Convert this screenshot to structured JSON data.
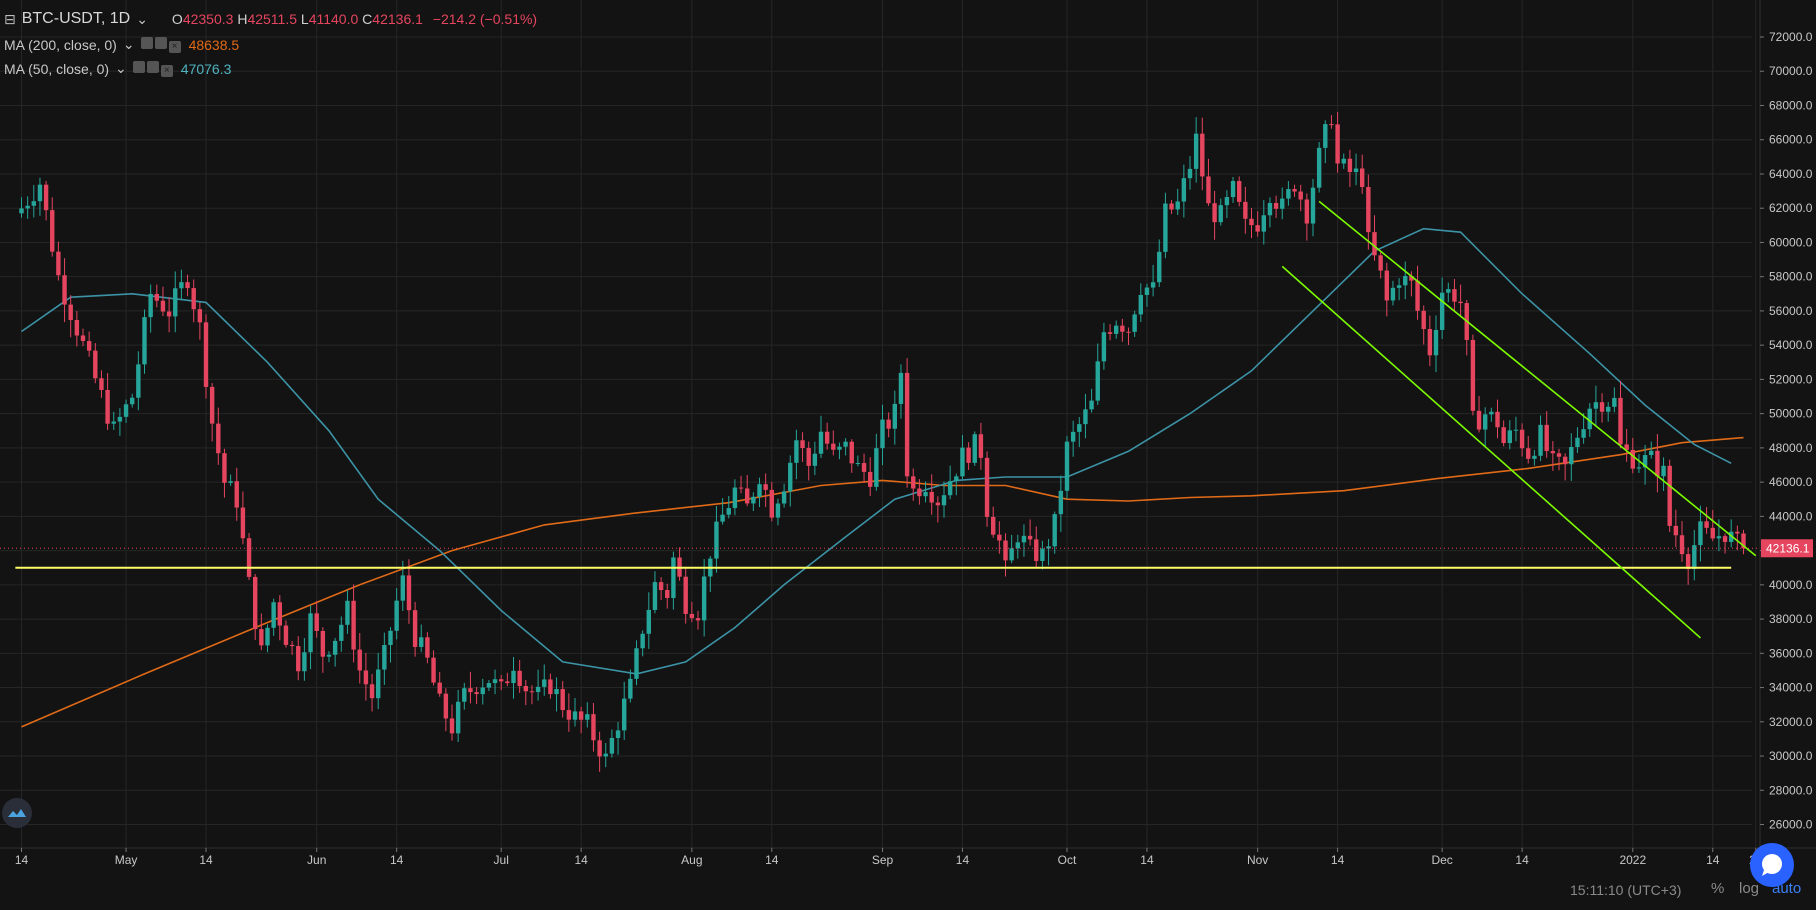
{
  "legend": {
    "symbol": "BTC-USDT, 1D",
    "open_label": "O",
    "open": "42350.3",
    "high_label": "H",
    "high": "42511.5",
    "low_label": "L",
    "low": "41140.0",
    "close_label": "C",
    "close": "42136.1",
    "change": "−214.2 (−0.51%)",
    "ma200_label": "MA (200, close, 0)",
    "ma200_value": "48638.5",
    "ma50_label": "MA (50, close, 0)",
    "ma50_value": "47076.3"
  },
  "status_bar": {
    "time": "15:11:10 (UTC+3)",
    "percent": "%",
    "log": "log",
    "auto": "auto"
  },
  "colors": {
    "background": "#131313",
    "up": "#26a69a",
    "down": "#e5455f",
    "ma200": "#e06a18",
    "ma50": "#3c93a6",
    "support": "#ffff66",
    "channel": "#7cfc00"
  },
  "chart_data": {
    "type": "candlestick",
    "title": "BTC-USDT, 1D",
    "y_ticks": [
      26000,
      28000,
      30000,
      32000,
      34000,
      36000,
      38000,
      40000,
      42000,
      44000,
      46000,
      48000,
      50000,
      52000,
      54000,
      56000,
      58000,
      60000,
      62000,
      64000,
      66000,
      68000,
      70000,
      72000
    ],
    "x_ticks": [
      {
        "label": "14",
        "day": 0
      },
      {
        "label": "May",
        "day": 17
      },
      {
        "label": "14",
        "day": 30
      },
      {
        "label": "Jun",
        "day": 48
      },
      {
        "label": "14",
        "day": 61
      },
      {
        "label": "Jul",
        "day": 78
      },
      {
        "label": "14",
        "day": 91
      },
      {
        "label": "Aug",
        "day": 109
      },
      {
        "label": "14",
        "day": 122
      },
      {
        "label": "Sep",
        "day": 140
      },
      {
        "label": "14",
        "day": 153
      },
      {
        "label": "Oct",
        "day": 170
      },
      {
        "label": "14",
        "day": 183
      },
      {
        "label": "Nov",
        "day": 201
      },
      {
        "label": "14",
        "day": 214
      },
      {
        "label": "Dec",
        "day": 231
      },
      {
        "label": "14",
        "day": 244
      },
      {
        "label": "2022",
        "day": 262
      },
      {
        "label": "14",
        "day": 275
      },
      {
        "label": "21",
        "day": 282
      }
    ],
    "last_price": 42136.1,
    "last_price_label": "42136.1",
    "close_keypoints": [
      [
        0,
        62000
      ],
      [
        3,
        63500
      ],
      [
        6,
        58000
      ],
      [
        9,
        55000
      ],
      [
        12,
        52000
      ],
      [
        15,
        49000
      ],
      [
        18,
        51000
      ],
      [
        21,
        57000
      ],
      [
        24,
        56000
      ],
      [
        27,
        58000
      ],
      [
        29,
        55000
      ],
      [
        31,
        49500
      ],
      [
        33,
        46000
      ],
      [
        35,
        45000
      ],
      [
        37,
        40000
      ],
      [
        39,
        36000
      ],
      [
        41,
        39000
      ],
      [
        43,
        37000
      ],
      [
        45,
        35500
      ],
      [
        47,
        38000
      ],
      [
        49,
        36000
      ],
      [
        51,
        37000
      ],
      [
        53,
        38500
      ],
      [
        55,
        35000
      ],
      [
        57,
        33500
      ],
      [
        59,
        35800
      ],
      [
        61,
        39000
      ],
      [
        62,
        40200
      ],
      [
        64,
        37000
      ],
      [
        66,
        35500
      ],
      [
        68,
        33000
      ],
      [
        70,
        31700
      ],
      [
        72,
        33500
      ],
      [
        74,
        34200
      ],
      [
        76,
        34500
      ],
      [
        78,
        33800
      ],
      [
        80,
        35500
      ],
      [
        82,
        34000
      ],
      [
        84,
        33500
      ],
      [
        86,
        34200
      ],
      [
        88,
        33000
      ],
      [
        90,
        32200
      ],
      [
        92,
        31800
      ],
      [
        94,
        30500
      ],
      [
        95,
        29800
      ],
      [
        97,
        32000
      ],
      [
        99,
        34000
      ],
      [
        101,
        37500
      ],
      [
        103,
        40000
      ],
      [
        105,
        39500
      ],
      [
        106,
        41500
      ],
      [
        108,
        39000
      ],
      [
        110,
        38500
      ],
      [
        112,
        42000
      ],
      [
        114,
        44000
      ],
      [
        116,
        45500
      ],
      [
        118,
        44500
      ],
      [
        120,
        46500
      ],
      [
        122,
        44500
      ],
      [
        124,
        46000
      ],
      [
        126,
        48500
      ],
      [
        128,
        47000
      ],
      [
        130,
        49000
      ],
      [
        132,
        47500
      ],
      [
        134,
        48000
      ],
      [
        136,
        46800
      ],
      [
        138,
        46400
      ],
      [
        140,
        49000
      ],
      [
        142,
        50000
      ],
      [
        143,
        52500
      ],
      [
        144,
        46800
      ],
      [
        145,
        45500
      ],
      [
        147,
        46000
      ],
      [
        149,
        45000
      ],
      [
        151,
        46200
      ],
      [
        153,
        47500
      ],
      [
        155,
        48100
      ],
      [
        156,
        47800
      ],
      [
        157,
        44500
      ],
      [
        158,
        43500
      ],
      [
        159,
        42500
      ],
      [
        160,
        40800
      ],
      [
        162,
        43000
      ],
      [
        164,
        42000
      ],
      [
        166,
        41700
      ],
      [
        168,
        43500
      ],
      [
        170,
        48000
      ],
      [
        172,
        49300
      ],
      [
        174,
        50500
      ],
      [
        176,
        54800
      ],
      [
        178,
        55500
      ],
      [
        180,
        55000
      ],
      [
        182,
        57500
      ],
      [
        184,
        57200
      ],
      [
        186,
        61700
      ],
      [
        188,
        62200
      ],
      [
        190,
        64500
      ],
      [
        191,
        66000
      ],
      [
        193,
        62000
      ],
      [
        195,
        61500
      ],
      [
        197,
        63000
      ],
      [
        199,
        60900
      ],
      [
        201,
        61200
      ],
      [
        203,
        63000
      ],
      [
        205,
        62000
      ],
      [
        207,
        63500
      ],
      [
        209,
        61800
      ],
      [
        211,
        65000
      ],
      [
        213,
        67500
      ],
      [
        214,
        64500
      ],
      [
        216,
        64100
      ],
      [
        218,
        63800
      ],
      [
        219,
        60000
      ],
      [
        221,
        58000
      ],
      [
        222,
        56500
      ],
      [
        224,
        58000
      ],
      [
        226,
        57500
      ],
      [
        227,
        56000
      ],
      [
        229,
        53700
      ],
      [
        231,
        57200
      ],
      [
        233,
        57000
      ],
      [
        234,
        56500
      ],
      [
        235,
        53700
      ],
      [
        236,
        49500
      ],
      [
        238,
        50000
      ],
      [
        240,
        49500
      ],
      [
        241,
        48300
      ],
      [
        243,
        49000
      ],
      [
        245,
        47700
      ],
      [
        247,
        48700
      ],
      [
        249,
        47000
      ],
      [
        251,
        46800
      ],
      [
        253,
        48800
      ],
      [
        255,
        50500
      ],
      [
        257,
        50800
      ],
      [
        259,
        50700
      ],
      [
        260,
        48000
      ],
      [
        261,
        47700
      ],
      [
        263,
        47200
      ],
      [
        265,
        47300
      ],
      [
        267,
        46500
      ],
      [
        268,
        43500
      ],
      [
        269,
        43000
      ],
      [
        271,
        41600
      ],
      [
        273,
        43100
      ],
      [
        275,
        42700
      ],
      [
        277,
        43100
      ],
      [
        279,
        42350
      ],
      [
        280,
        42136
      ]
    ],
    "ma200_points": [
      [
        0,
        31700
      ],
      [
        20,
        34800
      ],
      [
        40,
        37800
      ],
      [
        55,
        40000
      ],
      [
        70,
        42000
      ],
      [
        85,
        43500
      ],
      [
        100,
        44200
      ],
      [
        115,
        44800
      ],
      [
        130,
        45800
      ],
      [
        140,
        46100
      ],
      [
        150,
        45800
      ],
      [
        160,
        45800
      ],
      [
        170,
        45000
      ],
      [
        180,
        44900
      ],
      [
        190,
        45100
      ],
      [
        200,
        45200
      ],
      [
        215,
        45500
      ],
      [
        230,
        46200
      ],
      [
        245,
        46800
      ],
      [
        260,
        47600
      ],
      [
        270,
        48300
      ],
      [
        280,
        48600
      ]
    ],
    "ma50_points": [
      [
        0,
        54800
      ],
      [
        8,
        56800
      ],
      [
        18,
        57000
      ],
      [
        30,
        56500
      ],
      [
        40,
        53000
      ],
      [
        50,
        49000
      ],
      [
        58,
        45000
      ],
      [
        68,
        42000
      ],
      [
        78,
        38500
      ],
      [
        88,
        35500
      ],
      [
        100,
        34800
      ],
      [
        108,
        35500
      ],
      [
        116,
        37500
      ],
      [
        124,
        40000
      ],
      [
        134,
        42800
      ],
      [
        142,
        45000
      ],
      [
        152,
        46100
      ],
      [
        160,
        46300
      ],
      [
        170,
        46300
      ],
      [
        180,
        47800
      ],
      [
        190,
        50000
      ],
      [
        200,
        52500
      ],
      [
        210,
        56000
      ],
      [
        220,
        59500
      ],
      [
        228,
        60800
      ],
      [
        234,
        60600
      ],
      [
        244,
        57000
      ],
      [
        255,
        53500
      ],
      [
        264,
        50500
      ],
      [
        272,
        48200
      ],
      [
        278,
        47100
      ]
    ],
    "support_line": {
      "from_day": -1,
      "to_day": 278,
      "price": 41000
    },
    "channel_upper": {
      "from": [
        211,
        62400
      ],
      "to": [
        282,
        41700
      ]
    },
    "channel_lower": {
      "from": [
        205,
        58600
      ],
      "to": [
        273,
        36900
      ]
    }
  }
}
